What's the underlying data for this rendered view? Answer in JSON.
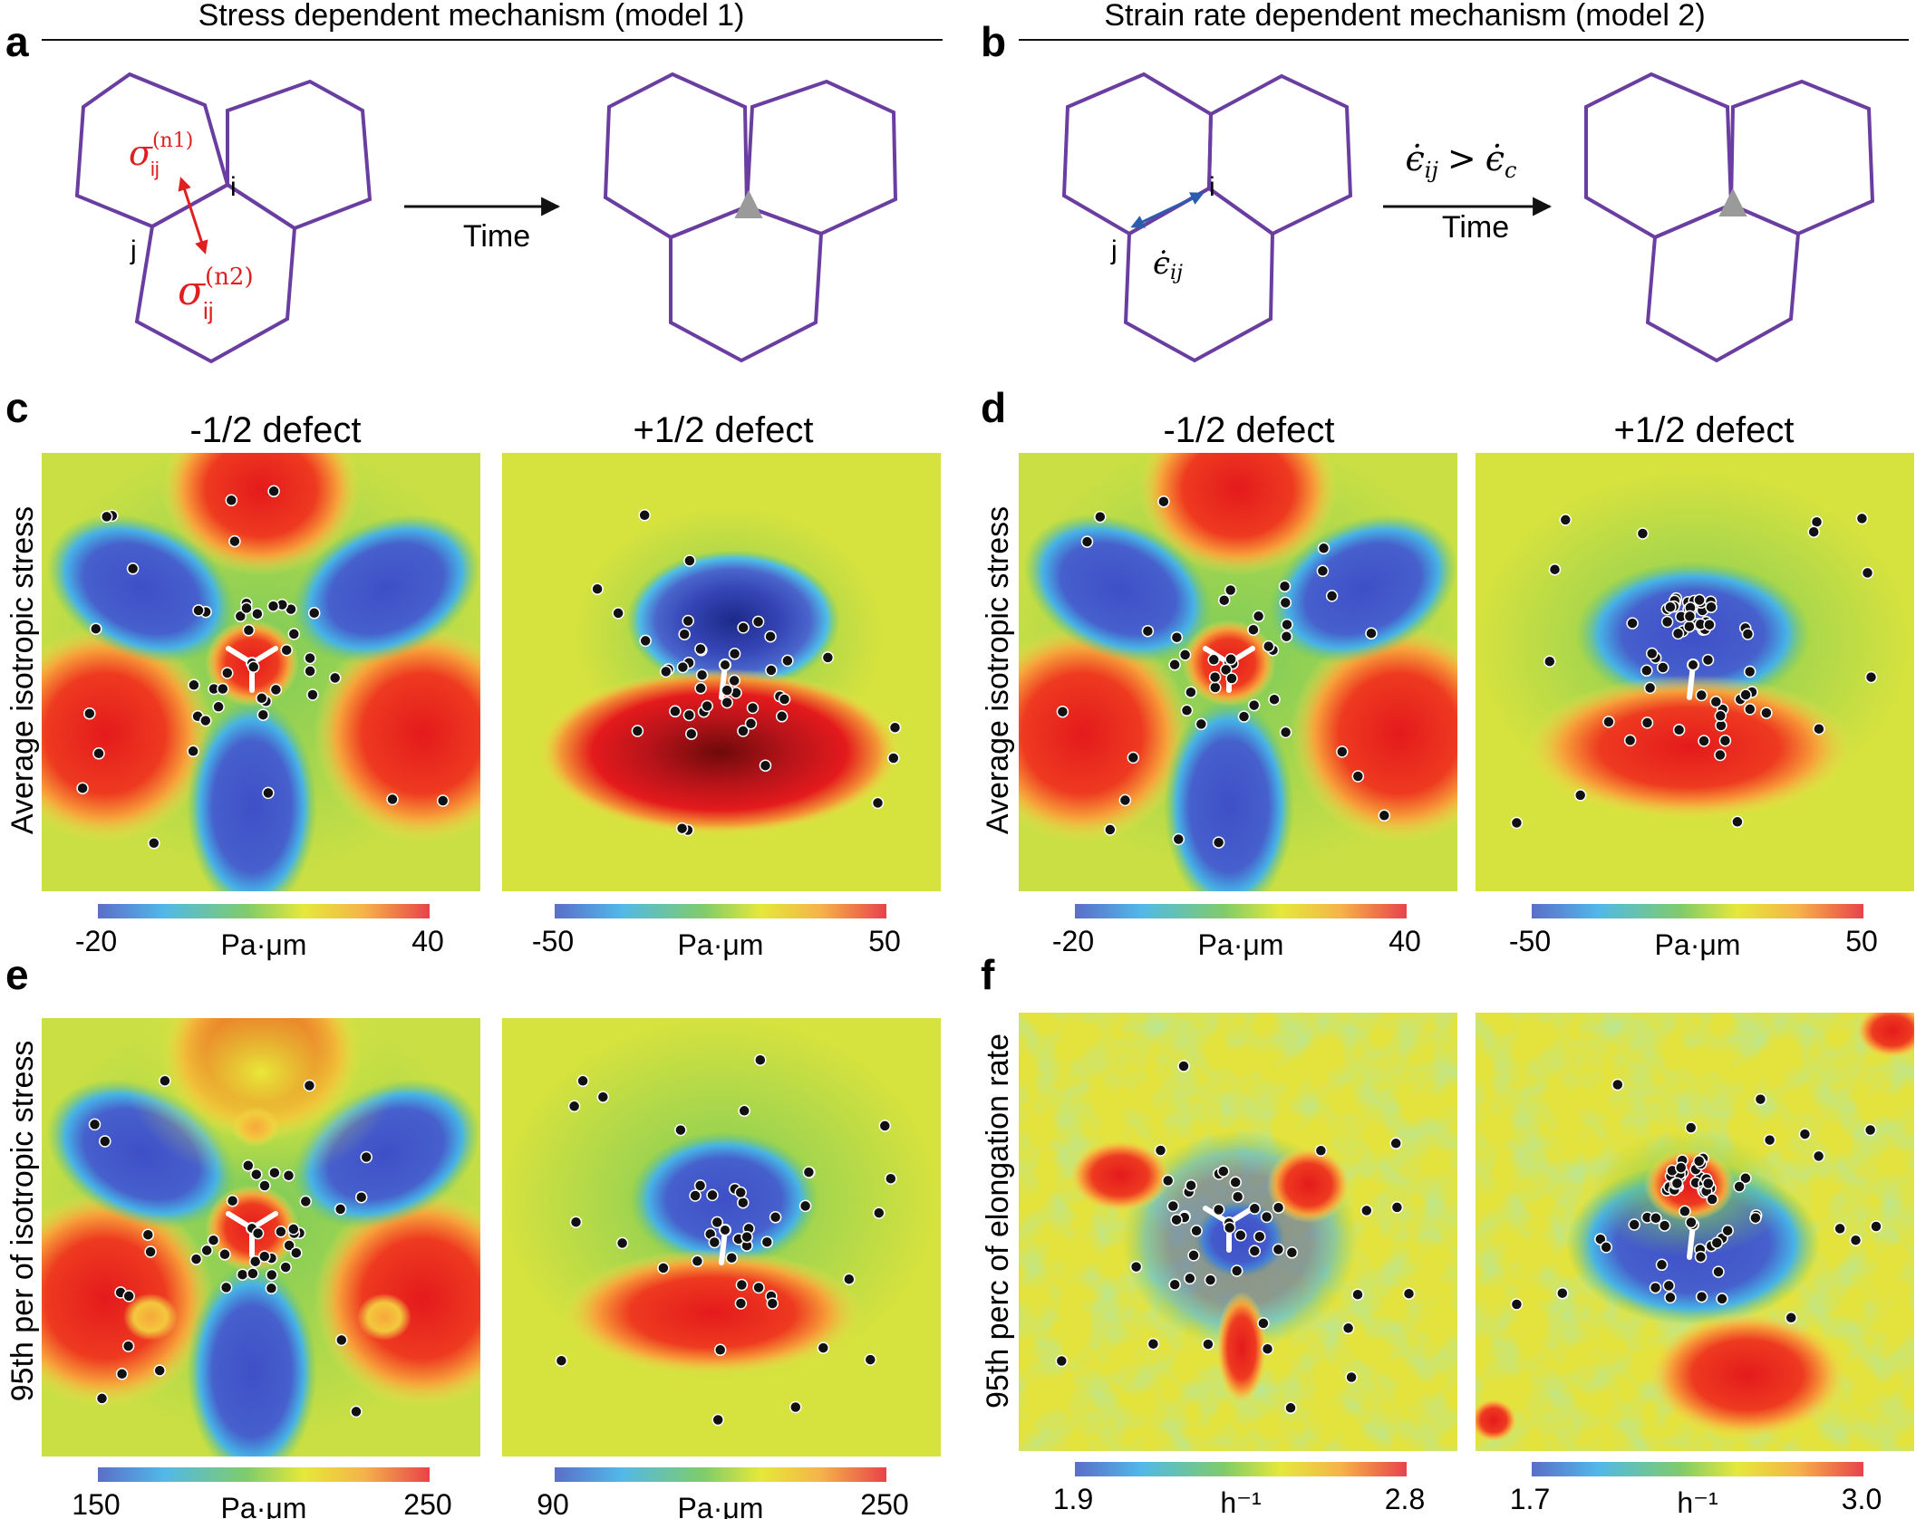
{
  "panels": {
    "a": {
      "letter": "a",
      "title": "Stress dependent mechanism (model 1)",
      "vertex_i": "i",
      "vertex_j": "j",
      "sigma_sym": "σ",
      "sigma_sub": "ij",
      "sigma_sup_1": "(n1)",
      "sigma_sup_2": "(n2)",
      "arrow_label": "Time"
    },
    "b": {
      "letter": "b",
      "title": "Strain rate dependent mechanism (model 2)",
      "vertex_i": "i",
      "vertex_j": "j",
      "rate_label": "ϵ̇",
      "rate_sub": "ij",
      "condition_lhs": "ϵ̇",
      "condition_lhs_sub": "ij",
      "condition_op": ">",
      "condition_rhs": "ϵ̇",
      "condition_rhs_sub": "c",
      "arrow_label": "Time"
    },
    "c": {
      "letter": "c",
      "row_label": "Average isotropic stress",
      "left_title": "-1/2 defect",
      "right_title": "+1/2 defect",
      "left_cbar": {
        "min": "-20",
        "unit": "Pa·μm",
        "max": "40"
      },
      "right_cbar": {
        "min": "-50",
        "unit": "Pa·μm",
        "max": "50"
      }
    },
    "d": {
      "letter": "d",
      "row_label": "Average isotropic stress",
      "left_title": "-1/2 defect",
      "right_title": "+1/2 defect",
      "left_cbar": {
        "min": "-20",
        "unit": "Pa·μm",
        "max": "40"
      },
      "right_cbar": {
        "min": "-50",
        "unit": "Pa·μm",
        "max": "50"
      }
    },
    "e": {
      "letter": "e",
      "row_label": "95th per of isotropic stress",
      "left_cbar": {
        "min": "150",
        "unit": "Pa·μm",
        "max": "250"
      },
      "right_cbar": {
        "min": "90",
        "unit": "Pa·μm",
        "max": "250"
      }
    },
    "f": {
      "letter": "f",
      "row_label": "95th perc of elongation rate",
      "left_cbar": {
        "min": "1.9",
        "unit": "h⁻¹",
        "max": "2.8"
      },
      "right_cbar": {
        "min": "1.7",
        "unit": "h⁻¹",
        "max": "3.0"
      }
    }
  },
  "colors": {
    "hexagon": "#6a3ea1",
    "stress_arrow": "#e02020",
    "rate_arrow": "#2a5db0",
    "triangle": "#9a9a9a",
    "low": "#3b4bc8",
    "high": "#e8231c"
  }
}
